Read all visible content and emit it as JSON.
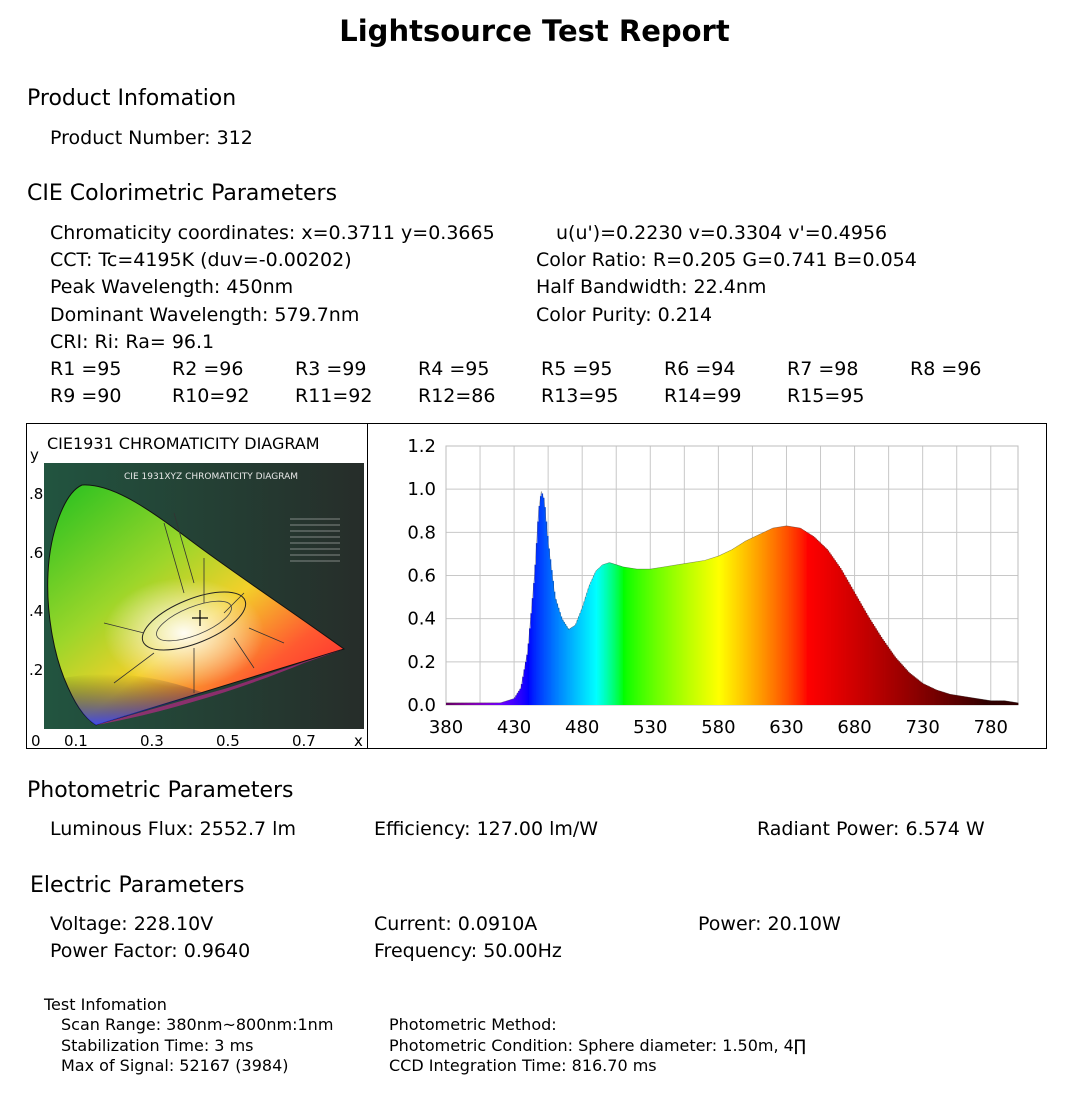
{
  "title": "Lightsource Test Report",
  "product": {
    "heading": "Product Infomation",
    "number_line": "Product Number: 312"
  },
  "cie": {
    "heading": "CIE Colorimetric Parameters",
    "chromaticity": "Chromaticity coordinates: x=0.3711 y=0.3665",
    "uv": "u(u')=0.2230 v=0.3304 v'=0.4956",
    "cct": "CCT: Tc=4195K (duv=-0.00202)",
    "color_ratio": "Color Ratio: R=0.205  G=0.741  B=0.054",
    "peak": "Peak Wavelength: 450nm",
    "half_bw": "Half Bandwidth: 22.4nm",
    "dominant": "Dominant Wavelength: 579.7nm",
    "purity": "Color Purity: 0.214",
    "cri": "CRI: Ri: Ra= 96.1",
    "r_row1": [
      "R1 =95",
      "R2 =96",
      "R3 =99",
      "R4 =95",
      "R5 =95",
      "R6 =94",
      "R7 =98",
      "R8 =96"
    ],
    "r_row2": [
      "R9 =90",
      "R10=92",
      "R11=92",
      "R12=86",
      "R13=95",
      "R14=99",
      "R15=95"
    ]
  },
  "cie_diagram": {
    "title": "CIE1931 CHROMATICITY DIAGRAM",
    "inner_title": "CIE 1931XYZ CHROMATICITY DIAGRAM",
    "y_label": "y",
    "x_label": "x",
    "y_ticks": [
      ".8",
      ".6",
      ".4",
      ".2"
    ],
    "x_ticks": [
      "0",
      "0.1",
      "0.3",
      "0.5",
      "0.7"
    ],
    "point": {
      "x": 0.3711,
      "y": 0.3665
    }
  },
  "chart_data": {
    "type": "area",
    "title": "",
    "xlabel": "",
    "ylabel": "",
    "xlim": [
      380,
      800
    ],
    "ylim": [
      0,
      1.2
    ],
    "x_ticks": [
      380,
      430,
      480,
      530,
      580,
      630,
      680,
      730,
      780
    ],
    "y_ticks": [
      "1.2",
      "1.0",
      "0.8",
      "0.6",
      "0.4",
      "0.2",
      "0.0"
    ],
    "grid": true,
    "x": [
      380,
      400,
      420,
      430,
      435,
      440,
      445,
      448,
      450,
      452,
      455,
      460,
      465,
      470,
      475,
      480,
      485,
      490,
      495,
      500,
      505,
      510,
      520,
      530,
      540,
      550,
      560,
      570,
      580,
      590,
      600,
      610,
      620,
      630,
      640,
      650,
      660,
      670,
      680,
      690,
      700,
      710,
      720,
      730,
      740,
      750,
      760,
      770,
      780,
      790,
      800
    ],
    "values": [
      0.01,
      0.01,
      0.01,
      0.03,
      0.08,
      0.25,
      0.6,
      0.9,
      0.99,
      0.95,
      0.75,
      0.5,
      0.4,
      0.35,
      0.37,
      0.45,
      0.55,
      0.62,
      0.65,
      0.66,
      0.65,
      0.64,
      0.63,
      0.63,
      0.64,
      0.65,
      0.66,
      0.67,
      0.69,
      0.72,
      0.76,
      0.79,
      0.82,
      0.83,
      0.82,
      0.78,
      0.72,
      0.63,
      0.52,
      0.41,
      0.31,
      0.22,
      0.15,
      0.1,
      0.07,
      0.05,
      0.04,
      0.03,
      0.02,
      0.02,
      0.01
    ]
  },
  "photometric": {
    "heading": "Photometric Parameters",
    "flux": "Luminous Flux: 2552.7 lm",
    "efficiency": "Efficiency: 127.00 lm/W",
    "radiant": "Radiant Power: 6.574  W"
  },
  "electric": {
    "heading": "Electric Parameters",
    "voltage": "Voltage: 228.10V",
    "current": "Current: 0.0910A",
    "power": "Power: 20.10W",
    "pf": "Power Factor: 0.9640",
    "frequency": "Frequency: 50.00Hz"
  },
  "test": {
    "heading": "Test Infomation",
    "scan": "Scan Range: 380nm~800nm:1nm",
    "stab": "Stabilization Time: 3 ms",
    "max": "Max of Signal: 52167 (3984)",
    "method": "Photometric Method:",
    "condition": "Photometric Condition: Sphere diameter: 1.50m, 4∏",
    "ccd": "CCD Integration Time: 816.70 ms"
  }
}
